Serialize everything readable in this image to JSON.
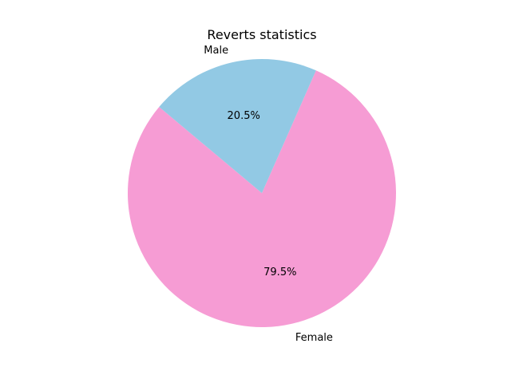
{
  "chart_data": {
    "type": "pie",
    "title": "Reverts statistics",
    "slices": [
      {
        "label": "Female",
        "value": 79.5,
        "pct_label": "79.5%",
        "color": "#f69cd4"
      },
      {
        "label": "Male",
        "value": 20.5,
        "pct_label": "20.5%",
        "color": "#92c9e4"
      }
    ],
    "legend": "none"
  }
}
